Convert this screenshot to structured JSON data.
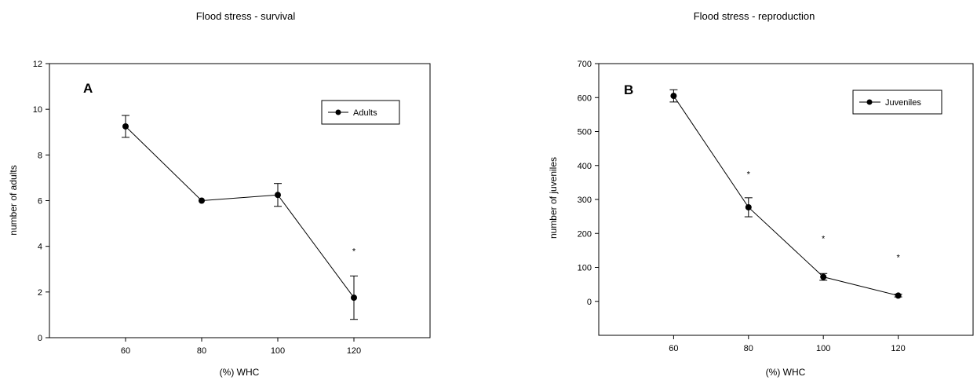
{
  "chart_data": [
    {
      "type": "line",
      "title": "Flood stress - survival",
      "panel_label": "A",
      "xlabel": "(%) WHC",
      "ylabel": "number of adults",
      "x": [
        60,
        80,
        100,
        120
      ],
      "xlim": [
        40,
        140
      ],
      "xticks": [
        60,
        80,
        100,
        120
      ],
      "ylim": [
        0,
        12
      ],
      "yticks": [
        0,
        2,
        4,
        6,
        8,
        10,
        12
      ],
      "grid": false,
      "legend_position": "top-right",
      "series": [
        {
          "name": "Adults",
          "values": [
            9.25,
            6.0,
            6.25,
            1.75
          ],
          "error": [
            0.48,
            0.0,
            0.5,
            0.95
          ]
        }
      ],
      "annotations": [
        {
          "text": "*",
          "x": 120,
          "y": 3.8
        }
      ]
    },
    {
      "type": "line",
      "title": "Flood stress - reproduction",
      "panel_label": "B",
      "xlabel": "(%) WHC",
      "ylabel": "number of juveniles",
      "x": [
        60,
        80,
        100,
        120
      ],
      "xlim": [
        40,
        140
      ],
      "xticks": [
        60,
        80,
        100,
        120
      ],
      "ylim": [
        -100,
        700
      ],
      "yticks": [
        0,
        100,
        200,
        300,
        400,
        500,
        600,
        700
      ],
      "grid": false,
      "legend_position": "top-right",
      "series": [
        {
          "name": "Juveniles",
          "values": [
            605,
            277,
            72,
            17
          ],
          "error": [
            18,
            28,
            10,
            4
          ]
        }
      ],
      "annotations": [
        {
          "text": "*",
          "x": 80,
          "y": 375
        },
        {
          "text": "*",
          "x": 100,
          "y": 185
        },
        {
          "text": "*",
          "x": 120,
          "y": 130
        }
      ]
    }
  ]
}
